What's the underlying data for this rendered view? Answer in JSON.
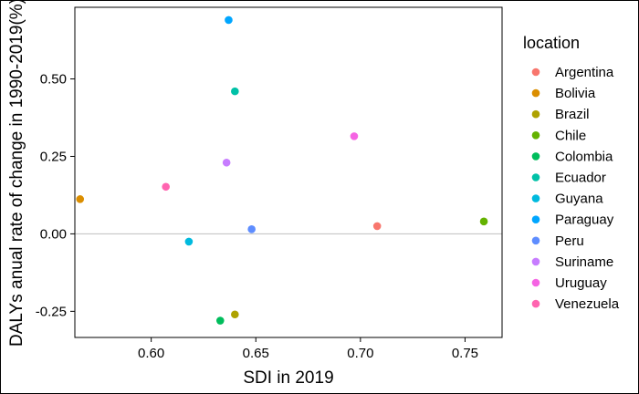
{
  "chart_data": {
    "type": "scatter",
    "title": "",
    "xlabel": "SDI in 2019",
    "ylabel": "DALYs anual rate of change in 1990-2019(%)",
    "xlim": [
      0.5635,
      0.7677
    ],
    "ylim": [
      -0.3343,
      0.7311
    ],
    "x_ticks": [
      {
        "value": 0.6,
        "label": "0.60"
      },
      {
        "value": 0.65,
        "label": "0.65"
      },
      {
        "value": 0.7,
        "label": "0.70"
      },
      {
        "value": 0.75,
        "label": "0.75"
      }
    ],
    "y_ticks": [
      {
        "value": -0.25,
        "label": "-0.25"
      },
      {
        "value": 0.0,
        "label": "0.00"
      },
      {
        "value": 0.25,
        "label": "0.25"
      },
      {
        "value": 0.5,
        "label": "0.50"
      }
    ],
    "reference_line_y": 0,
    "grid": false,
    "legend": {
      "title": "location",
      "placement": "right"
    },
    "series": [
      {
        "name": "Argentina",
        "color": "#F8766D",
        "x": 0.708,
        "y": 0.025
      },
      {
        "name": "Bolivia",
        "color": "#DB8E00",
        "x": 0.566,
        "y": 0.112
      },
      {
        "name": "Brazil",
        "color": "#AEA200",
        "x": 0.64,
        "y": -0.26
      },
      {
        "name": "Chile",
        "color": "#64B200",
        "x": 0.759,
        "y": 0.04
      },
      {
        "name": "Colombia",
        "color": "#00BD5C",
        "x": 0.633,
        "y": -0.28
      },
      {
        "name": "Ecuador",
        "color": "#00C1A7",
        "x": 0.64,
        "y": 0.46
      },
      {
        "name": "Guyana",
        "color": "#00BADE",
        "x": 0.618,
        "y": -0.025
      },
      {
        "name": "Paraguay",
        "color": "#00A6FF",
        "x": 0.637,
        "y": 0.69
      },
      {
        "name": "Peru",
        "color": "#5E8DFF",
        "x": 0.648,
        "y": 0.015
      },
      {
        "name": "Suriname",
        "color": "#C77CFF",
        "x": 0.636,
        "y": 0.23
      },
      {
        "name": "Uruguay",
        "color": "#F564E3",
        "x": 0.697,
        "y": 0.315
      },
      {
        "name": "Venezuela",
        "color": "#FF64B0",
        "x": 0.607,
        "y": 0.152
      }
    ]
  }
}
